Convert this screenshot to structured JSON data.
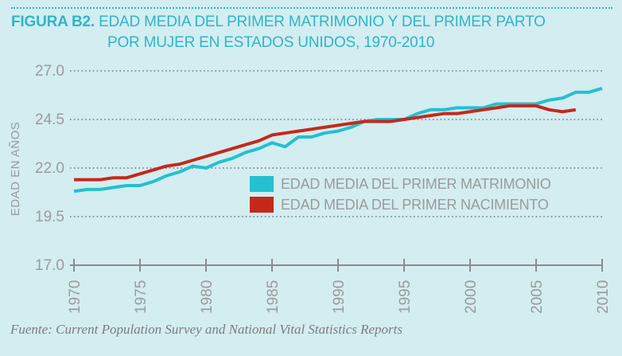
{
  "page": {
    "background_color": "#d3edf1",
    "accent_color": "#2eb6c8",
    "text_gray": "#9a9b9c"
  },
  "title": {
    "prefix": "FIGURA B2.",
    "line1": "EDAD MEDIA DEL PRIMER MATRIMONIO Y DEL PRIMER PARTO",
    "line2": "POR MUJER EN ESTADOS UNIDOS, 1970-2010"
  },
  "source": "Fuente: Current Population Survey and National Vital Statistics Reports",
  "chart_data": {
    "type": "line",
    "title": "FIGURA B2. EDAD MEDIA DEL PRIMER MATRIMONIO Y DEL PRIMER PARTO POR MUJER EN ESTADOS UNIDOS, 1970-2010",
    "xlabel": "",
    "ylabel": "EDAD EN AÑOS",
    "ylim": [
      17.0,
      27.0
    ],
    "yticks": [
      17.0,
      19.5,
      22.0,
      24.5,
      27.0
    ],
    "ytick_labels": [
      "17.0",
      "19.5",
      "22.0",
      "24.5",
      "27.0"
    ],
    "xlim": [
      1970,
      2010
    ],
    "xticks": [
      1970,
      1975,
      1980,
      1985,
      1990,
      1995,
      2000,
      2005,
      2010
    ],
    "grid": "horizontal dotted gridlines; solid x-axis at y=17.0 with tick marks",
    "legend_position": "inside plot, lower center",
    "series": [
      {
        "name": "EDAD MEDIA DEL PRIMER MATRIMONIO",
        "color": "#24c0cf",
        "x": [
          1970,
          1971,
          1972,
          1973,
          1974,
          1975,
          1976,
          1977,
          1978,
          1979,
          1980,
          1981,
          1982,
          1983,
          1984,
          1985,
          1986,
          1987,
          1988,
          1989,
          1990,
          1991,
          1992,
          1993,
          1994,
          1995,
          1996,
          1997,
          1998,
          1999,
          2000,
          2001,
          2002,
          2003,
          2004,
          2005,
          2006,
          2007,
          2008,
          2009,
          2010
        ],
        "values": [
          20.8,
          20.9,
          20.9,
          21.0,
          21.1,
          21.1,
          21.3,
          21.6,
          21.8,
          22.1,
          22.0,
          22.3,
          22.5,
          22.8,
          23.0,
          23.3,
          23.1,
          23.6,
          23.6,
          23.8,
          23.9,
          24.1,
          24.4,
          24.5,
          24.5,
          24.5,
          24.8,
          25.0,
          25.0,
          25.1,
          25.1,
          25.1,
          25.3,
          25.3,
          25.3,
          25.3,
          25.5,
          25.6,
          25.9,
          25.9,
          26.1
        ]
      },
      {
        "name": "EDAD MEDIA DEL PRIMER NACIMIENTO",
        "color": "#c6281c",
        "x": [
          1970,
          1971,
          1972,
          1973,
          1974,
          1975,
          1976,
          1977,
          1978,
          1979,
          1980,
          1981,
          1982,
          1983,
          1984,
          1985,
          1986,
          1987,
          1988,
          1989,
          1990,
          1991,
          1992,
          1993,
          1994,
          1995,
          1996,
          1997,
          1998,
          1999,
          2000,
          2001,
          2002,
          2003,
          2004,
          2005,
          2006,
          2007,
          2008
        ],
        "values": [
          21.4,
          21.4,
          21.4,
          21.5,
          21.5,
          21.7,
          21.9,
          22.1,
          22.2,
          22.4,
          22.6,
          22.8,
          23.0,
          23.2,
          23.4,
          23.7,
          23.8,
          23.9,
          24.0,
          24.1,
          24.2,
          24.3,
          24.4,
          24.4,
          24.4,
          24.5,
          24.6,
          24.7,
          24.8,
          24.8,
          24.9,
          25.0,
          25.1,
          25.2,
          25.2,
          25.2,
          25.0,
          24.9,
          25.0
        ]
      }
    ]
  }
}
